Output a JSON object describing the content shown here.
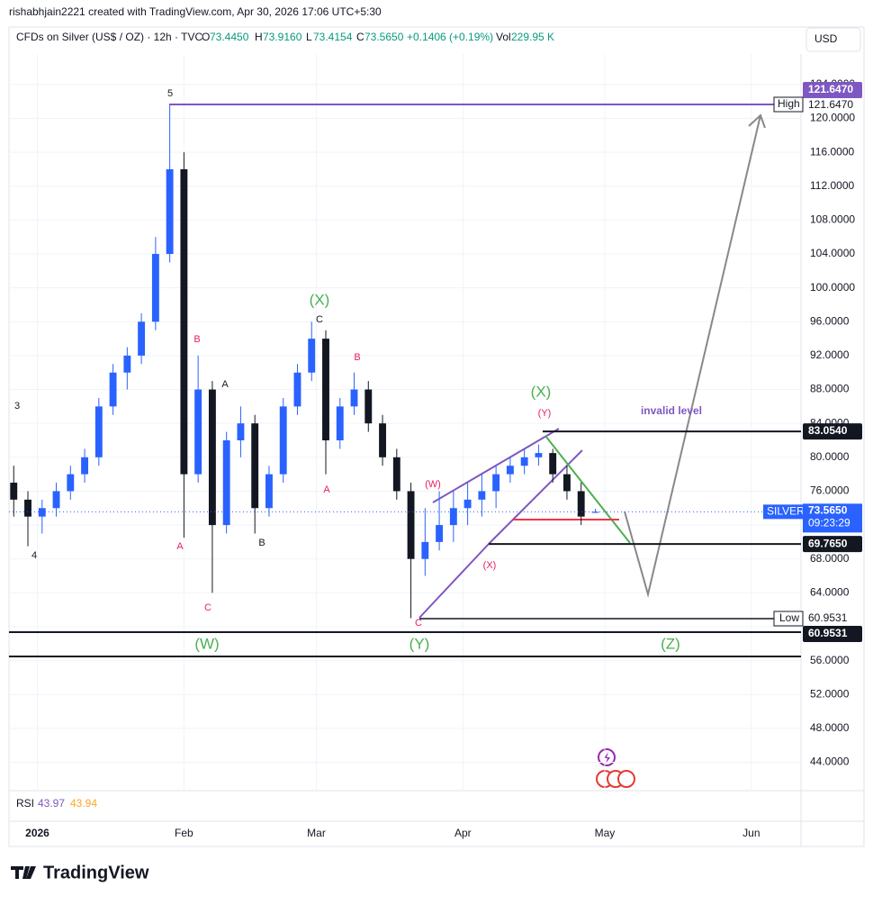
{
  "header": {
    "credit": "rishabhjain2221 created with TradingView.com, Apr 30, 2026 17:06 UTC+5:30",
    "symbol": "CFDs on Silver (US$ / OZ) · 12h · TVC",
    "o": "O",
    "open": "73.4450",
    "h": "H",
    "high": "73.9160",
    "l": "L",
    "low": "73.4154",
    "c": "C",
    "close": "73.5650",
    "change": "+0.1406 (+0.19%)",
    "vol": "Vol",
    "volume": "229.95 K",
    "currency": "USD"
  },
  "chart_data": {
    "type": "candlestick",
    "up_color": "#2962ff",
    "down_color": "#131722",
    "grid": true,
    "x": [
      -5,
      -2,
      1,
      4,
      7,
      10,
      13,
      16,
      19,
      22,
      25,
      28,
      31,
      34,
      37,
      40,
      43,
      46,
      49,
      52,
      55,
      58,
      61,
      64,
      67,
      70,
      73,
      76,
      79,
      82,
      85,
      88,
      91,
      94,
      97,
      100,
      103,
      106,
      109,
      112,
      115,
      118
    ],
    "open": [
      77,
      75,
      73,
      74,
      76,
      78,
      80,
      86,
      90,
      92,
      96,
      104,
      114,
      78,
      88,
      72,
      82,
      84,
      74,
      78,
      86,
      90,
      94,
      82,
      86,
      88,
      84,
      80,
      76,
      68,
      70,
      72,
      74,
      75,
      76,
      78,
      79,
      80,
      80.5,
      78,
      76,
      73.445
    ],
    "high": [
      79,
      76,
      75,
      77,
      79,
      81,
      87,
      91,
      93,
      97,
      106,
      121.647,
      116,
      92,
      89,
      83,
      86,
      85,
      79,
      87,
      91,
      96,
      95,
      87,
      90,
      89,
      85,
      81,
      77,
      74,
      76,
      76,
      77,
      78,
      79,
      80,
      81,
      81.5,
      81,
      79,
      77,
      73.916
    ],
    "low": [
      73,
      69.5,
      71,
      73,
      75,
      77,
      79,
      85,
      88,
      91,
      95,
      103,
      70.5,
      77,
      64,
      71,
      80,
      71,
      73,
      77,
      85,
      89,
      78,
      81,
      85,
      83,
      79,
      75,
      61,
      66,
      69,
      70,
      72,
      73,
      74,
      77,
      78,
      79,
      77,
      75,
      72,
      73.4154
    ],
    "close": [
      75,
      73,
      74,
      76,
      78,
      80,
      86,
      90,
      92,
      96,
      104,
      114,
      78,
      88,
      72,
      82,
      84,
      74,
      78,
      86,
      90,
      94,
      82,
      86,
      88,
      84,
      80,
      76,
      68,
      70,
      72,
      74,
      75,
      76,
      78,
      79,
      80,
      80.5,
      78,
      76,
      73,
      73.565
    ],
    "xlim": [
      -6,
      161.5
    ],
    "xticks": [
      {
        "value": 0,
        "label": "2026"
      },
      {
        "value": 31,
        "label": "Feb"
      },
      {
        "value": 59,
        "label": "Mar"
      },
      {
        "value": 90,
        "label": "Apr"
      },
      {
        "value": 120,
        "label": "May"
      },
      {
        "value": 151,
        "label": "Jun"
      }
    ],
    "ylim": [
      40.65,
      127.6
    ],
    "yticks": [
      {
        "value": 44,
        "label": "44.0000"
      },
      {
        "value": 48,
        "label": "48.0000"
      },
      {
        "value": 52,
        "label": "52.0000"
      },
      {
        "value": 56,
        "label": "56.0000"
      },
      {
        "value": 60,
        "label": "60.0000"
      },
      {
        "value": 64,
        "label": "64.0000"
      },
      {
        "value": 68,
        "label": "68.0000"
      },
      {
        "value": 72,
        "label": "72.0000"
      },
      {
        "value": 76,
        "label": "76.0000"
      },
      {
        "value": 80,
        "label": "80.0000"
      },
      {
        "value": 84,
        "label": "84.0000"
      },
      {
        "value": 88,
        "label": "88.0000"
      },
      {
        "value": 92,
        "label": "92.0000"
      },
      {
        "value": 96,
        "label": "96.0000"
      },
      {
        "value": 100,
        "label": "100.0000"
      },
      {
        "value": 104,
        "label": "104.0000"
      },
      {
        "value": 108,
        "label": "108.0000"
      },
      {
        "value": 112,
        "label": "112.0000"
      },
      {
        "value": 116,
        "label": "116.0000"
      },
      {
        "value": 120,
        "label": "120.0000"
      },
      {
        "value": 124,
        "label": "124.0000"
      }
    ],
    "high_level": {
      "name": "High",
      "value": 121.647,
      "label": "121.6470"
    },
    "low_level": {
      "name": "Low",
      "value": 60.9531,
      "label": "60.9531"
    },
    "levels": [
      {
        "value": 83.054,
        "label": "83.0540"
      },
      {
        "value": 69.765,
        "label": "69.7650"
      },
      {
        "value": 60.9531,
        "label": "60.9531"
      }
    ],
    "last": {
      "symbol": "SILVER",
      "value": 73.565,
      "label": "73.5650",
      "countdown": "09:23:29"
    },
    "annotations": [
      {
        "text": "5",
        "color": "#131722"
      },
      {
        "text": "3",
        "color": "#131722"
      },
      {
        "text": "4",
        "color": "#131722"
      },
      {
        "text": "(X)",
        "color": "#4caf50"
      },
      {
        "text": "C",
        "color": "#131722"
      },
      {
        "text": "B",
        "color": "#e91e63"
      },
      {
        "text": "A",
        "color": "#131722"
      },
      {
        "text": "B",
        "color": "#e91e63"
      },
      {
        "text": "A",
        "color": "#e91e63"
      },
      {
        "text": "A",
        "color": "#e91e63"
      },
      {
        "text": "C",
        "color": "#e91e63"
      },
      {
        "text": "B",
        "color": "#131722"
      },
      {
        "text": "(X)",
        "color": "#4caf50"
      },
      {
        "text": "(Y)",
        "color": "#e91e63"
      },
      {
        "text": "(W)",
        "color": "#e91e63"
      },
      {
        "text": "(X)",
        "color": "#e91e63"
      },
      {
        "text": "C",
        "color": "#e91e63"
      },
      {
        "text": "(W)",
        "color": "#4caf50"
      },
      {
        "text": "(Y)",
        "color": "#4caf50"
      },
      {
        "text": "(Z)",
        "color": "#4caf50"
      },
      {
        "text": "invalid level",
        "color": "#7e57c2"
      }
    ]
  },
  "rsi": {
    "name": "RSI",
    "value": "43.97",
    "smoothed": "43.94"
  },
  "footer": {
    "brand": "TradingView"
  }
}
